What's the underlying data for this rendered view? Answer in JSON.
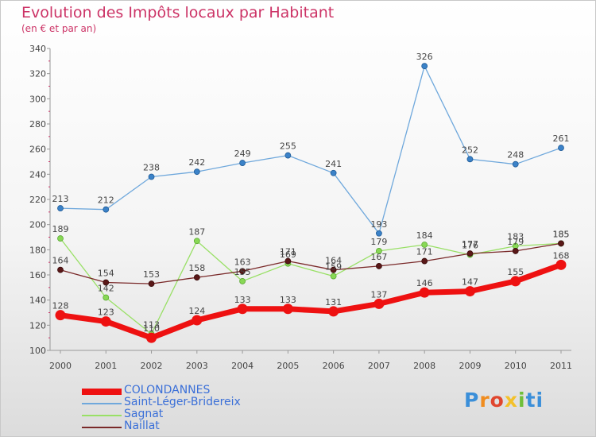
{
  "title": "Evolution des Impôts locaux par Habitant",
  "subtitle": "(en € et par an)",
  "logo": {
    "text": "Proxiti",
    "letters": [
      "P",
      "r",
      "o",
      "x",
      "i",
      "ti"
    ]
  },
  "chart_data": {
    "type": "line",
    "title": "Evolution des Impôts locaux par Habitant",
    "subtitle": "(en € et par an)",
    "xlabel": "",
    "ylabel": "",
    "ylim": [
      100,
      340
    ],
    "ytick_step": 20,
    "yticks": [
      "100",
      "120",
      "140",
      "160",
      "180",
      "200",
      "220",
      "240",
      "260",
      "280",
      "300",
      "320",
      "340"
    ],
    "grid": false,
    "legend_position": "bottom-left",
    "categories": [
      "2000",
      "2001",
      "2002",
      "2003",
      "2004",
      "2005",
      "2006",
      "2007",
      "2008",
      "2009",
      "2010",
      "2011"
    ],
    "series": [
      {
        "name": "COLONDANNES",
        "color": "#ee1111",
        "values": [
          128,
          123,
          110,
          124,
          133,
          133,
          131,
          137,
          146,
          147,
          155,
          168
        ],
        "labels": [
          "128",
          "123",
          "110",
          "124",
          "133",
          "133",
          "131",
          "137",
          "146",
          "147",
          "155",
          "168"
        ]
      },
      {
        "name": "Saint-Léger-Bridereix",
        "color": "#6fa8dc",
        "values": [
          213,
          212,
          238,
          242,
          249,
          255,
          241,
          193,
          326,
          252,
          248,
          261
        ],
        "labels": [
          "213",
          "212",
          "238",
          "242",
          "249",
          "255",
          "241",
          "193",
          "326",
          "252",
          "248",
          "261"
        ]
      },
      {
        "name": "Sagnat",
        "color": "#99e066",
        "values": [
          189,
          142,
          113,
          187,
          155,
          169,
          159,
          179,
          184,
          176,
          183,
          185
        ],
        "labels": [
          "189",
          "142",
          "113",
          "187",
          "155",
          "169",
          "159",
          "179",
          "184",
          "176",
          "183",
          "185"
        ]
      },
      {
        "name": "Naillat",
        "color": "#7a2a2a",
        "values": [
          164,
          154,
          153,
          158,
          163,
          171,
          164,
          167,
          171,
          177,
          179,
          185
        ],
        "labels": [
          "164",
          "154",
          "153",
          "158",
          "163",
          "171",
          "164",
          "167",
          "171",
          "177",
          "179",
          "185"
        ]
      }
    ]
  }
}
